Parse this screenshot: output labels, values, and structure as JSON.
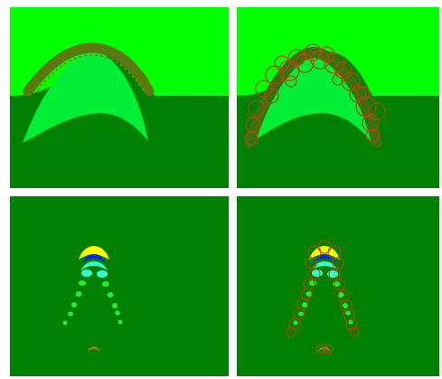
{
  "colors": {
    "sky_green": "#00ff00",
    "ground_green": "#008000",
    "arch_fill": "#00ee33",
    "band": "#5a7a10",
    "band_dark": "#3d6e10",
    "circle_stroke": "#b34a00",
    "yellow": "#ffff00",
    "cyan": "#33ffcc",
    "blue": "#0022ff",
    "spot_green": "#22ee33",
    "background": "#ffffff"
  },
  "panels": [
    {
      "id": "top-left",
      "content": "arch-band"
    },
    {
      "id": "top-right",
      "content": "arch-band-with-circles"
    },
    {
      "id": "bottom-left",
      "content": "sparse-blobs"
    },
    {
      "id": "bottom-right",
      "content": "sparse-blobs-with-circles"
    }
  ]
}
